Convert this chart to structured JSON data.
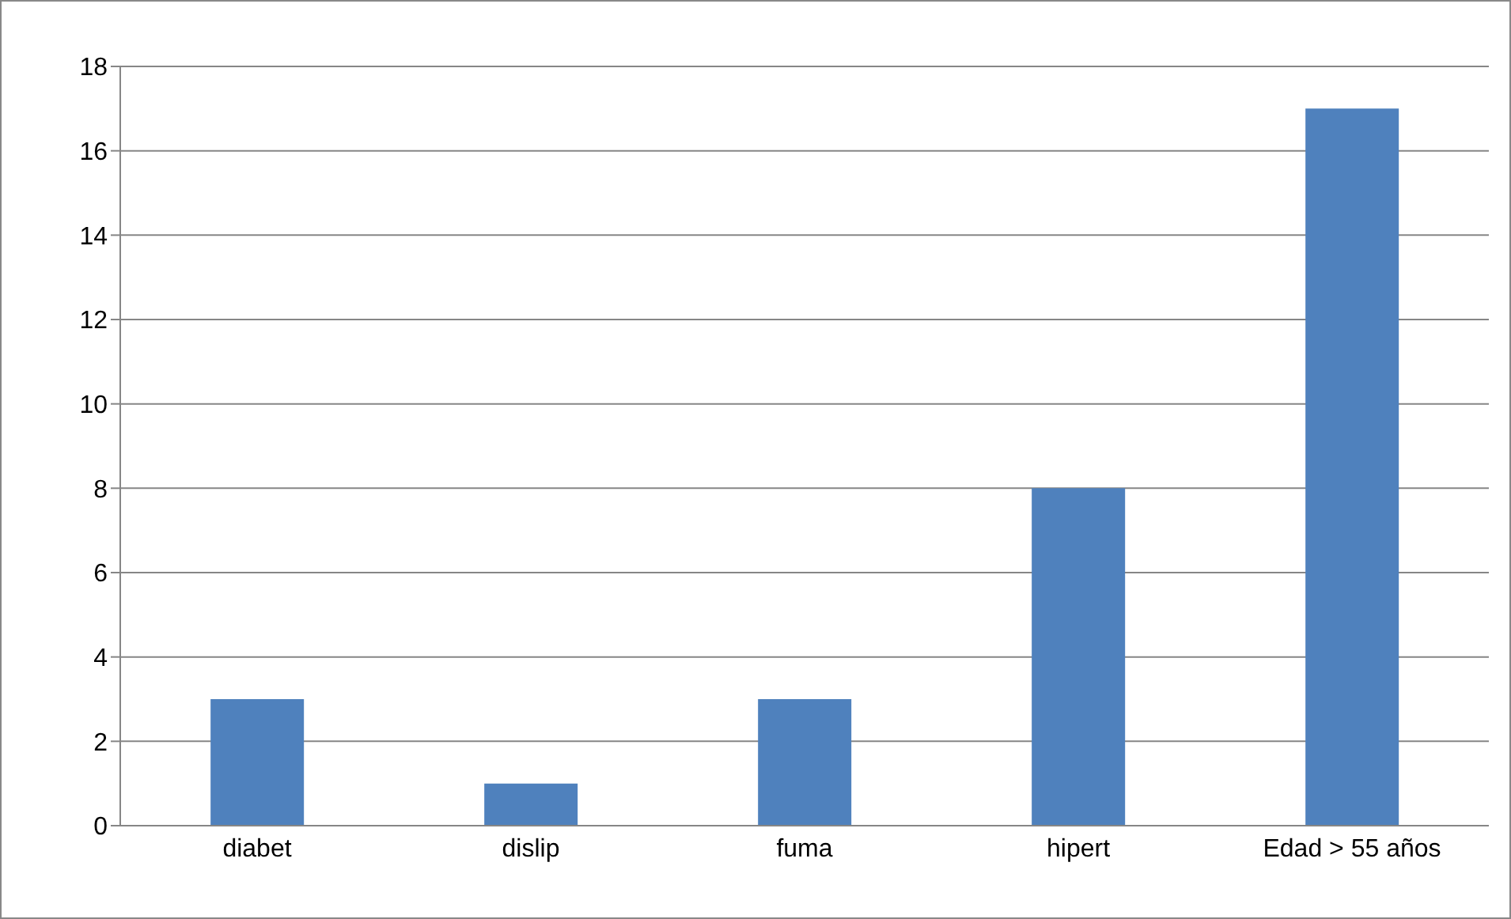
{
  "chart_data": {
    "type": "bar",
    "categories": [
      "diabet",
      "dislip",
      "fuma",
      "hipert",
      "Edad > 55 años"
    ],
    "values": [
      3,
      1,
      3,
      8,
      17
    ],
    "color": "#4f81bd",
    "ylim": [
      0,
      18
    ],
    "yticks": [
      0,
      2,
      4,
      6,
      8,
      10,
      12,
      14,
      16,
      18
    ],
    "grid": "y",
    "legend": false
  }
}
